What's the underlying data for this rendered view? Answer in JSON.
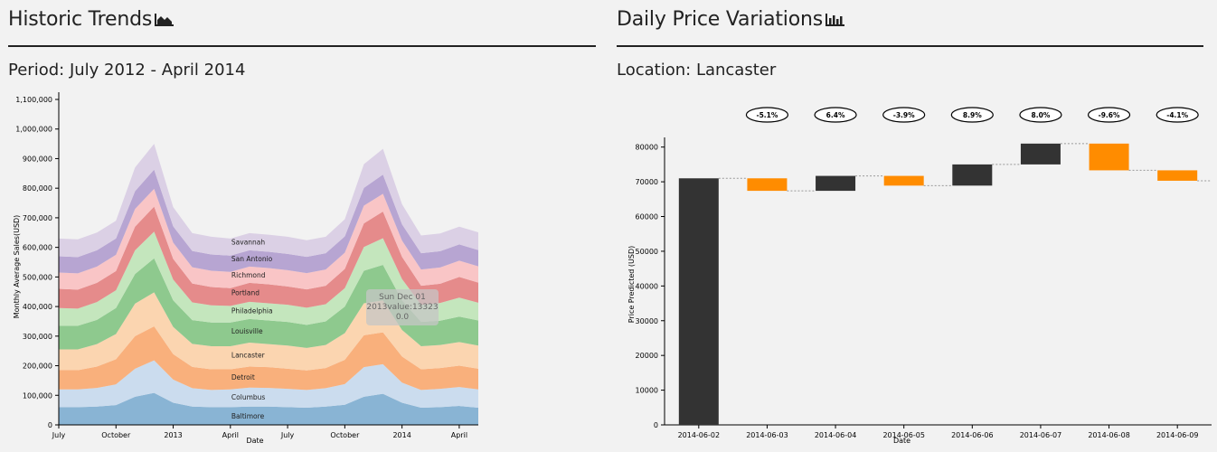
{
  "left": {
    "title": "Historic Trends",
    "title_icon": "area-chart-icon",
    "subtitle_label": "Period:",
    "subtitle_value": "July 2012 - April 2014"
  },
  "right": {
    "title": "Daily Price Variations",
    "title_icon": "bar-chart-icon",
    "subtitle_label": "Location:",
    "subtitle_value": "Lancaster"
  },
  "colors": {
    "stack": [
      "#89b4d4",
      "#cbdcee",
      "#f9b07c",
      "#fbd5b0",
      "#8ec98e",
      "#c4e6bd",
      "#e58b8b",
      "#f9c5c6",
      "#b7a5d2",
      "#dbd0e5"
    ],
    "increase": "#333333",
    "decrease": "#ff8c00",
    "tooltip_bg": "#c6c6c6",
    "tooltip_text": "#666666"
  },
  "chart_data": [
    {
      "type": "area",
      "stacked": true,
      "xlabel": "Date",
      "ylabel": "Monthly Average Sales(USD)",
      "ylim": [
        0,
        1100000
      ],
      "x_ticks": [
        "July",
        "October",
        "2013",
        "April",
        "July",
        "October",
        "2014",
        "April"
      ],
      "y_ticks": [
        "0",
        "100,000",
        "200,000",
        "300,000",
        "400,000",
        "500,000",
        "600,000",
        "700,000",
        "800,000",
        "900,000",
        "1,000,000",
        "1,100,000"
      ],
      "x": [
        "2012-07",
        "2012-08",
        "2012-09",
        "2012-10",
        "2012-11",
        "2012-12",
        "2013-01",
        "2013-02",
        "2013-03",
        "2013-04",
        "2013-05",
        "2013-06",
        "2013-07",
        "2013-08",
        "2013-09",
        "2013-10",
        "2013-11",
        "2013-12",
        "2014-01",
        "2014-02",
        "2014-03",
        "2014-04",
        "2014-05"
      ],
      "series": [
        {
          "name": "Baltimore",
          "values": [
            60000,
            60000,
            62000,
            67000,
            95000,
            108000,
            75000,
            62000,
            60000,
            60000,
            62000,
            62000,
            60000,
            58000,
            62000,
            68000,
            95000,
            105000,
            75000,
            58000,
            60000,
            64000,
            58000
          ]
        },
        {
          "name": "Columbus",
          "values": [
            60000,
            60000,
            63000,
            70000,
            95000,
            110000,
            78000,
            62000,
            58000,
            60000,
            64000,
            63000,
            62000,
            60000,
            62000,
            70000,
            100000,
            100000,
            68000,
            60000,
            62000,
            64000,
            62000
          ]
        },
        {
          "name": "Detroit",
          "values": [
            65000,
            65000,
            72000,
            85000,
            110000,
            115000,
            86000,
            72000,
            70000,
            68000,
            71000,
            70000,
            68000,
            66000,
            68000,
            82000,
            108000,
            108000,
            88000,
            70000,
            70000,
            72000,
            70000
          ]
        },
        {
          "name": "Lancaster",
          "values": [
            70000,
            70000,
            76000,
            85000,
            110000,
            115000,
            92000,
            78000,
            78000,
            78000,
            81000,
            78000,
            78000,
            76000,
            78000,
            90000,
            108000,
            108000,
            90000,
            78000,
            78000,
            80000,
            78000
          ]
        },
        {
          "name": "Louisville",
          "values": [
            80000,
            80000,
            82000,
            88000,
            100000,
            115000,
            90000,
            80000,
            80000,
            80000,
            80000,
            80000,
            80000,
            78000,
            80000,
            90000,
            110000,
            120000,
            100000,
            82000,
            82000,
            86000,
            85000
          ]
        },
        {
          "name": "Philadelphia",
          "values": [
            60000,
            58000,
            60000,
            60000,
            80000,
            90000,
            70000,
            60000,
            58000,
            56000,
            58000,
            58000,
            58000,
            58000,
            58000,
            62000,
            80000,
            90000,
            72000,
            58000,
            60000,
            64000,
            60000
          ]
        },
        {
          "name": "Portland",
          "values": [
            65000,
            64000,
            65000,
            65000,
            80000,
            85000,
            70000,
            64000,
            62000,
            60000,
            64000,
            64000,
            62000,
            62000,
            62000,
            65000,
            80000,
            90000,
            75000,
            64000,
            65000,
            70000,
            68000
          ]
        },
        {
          "name": "Richmond",
          "values": [
            55000,
            55000,
            55000,
            55000,
            60000,
            60000,
            55000,
            55000,
            55000,
            55000,
            55000,
            55000,
            55000,
            55000,
            55000,
            55000,
            60000,
            60000,
            55000,
            55000,
            55000,
            55000,
            55000
          ]
        },
        {
          "name": "San Antonio",
          "values": [
            55000,
            55000,
            55000,
            55000,
            60000,
            65000,
            55000,
            55000,
            55000,
            55000,
            55000,
            55000,
            55000,
            55000,
            55000,
            55000,
            60000,
            65000,
            55000,
            55000,
            55000,
            55000,
            55000
          ]
        },
        {
          "name": "Savannah",
          "values": [
            60000,
            60000,
            60000,
            60000,
            80000,
            87000,
            65000,
            60000,
            60000,
            58000,
            58000,
            58000,
            58000,
            56000,
            56000,
            58000,
            80000,
            87000,
            68000,
            60000,
            60000,
            60000,
            60000
          ]
        }
      ],
      "labels": [
        "Savannah",
        "San Antonio",
        "Richmond",
        "Portland",
        "Philadelphia",
        "Louisville",
        "Lancaster",
        "Detroit",
        "Columbus",
        "Baltimore"
      ],
      "tooltip": {
        "line1": "Sun Dec 01",
        "line2": "2013value:13323",
        "line3": "0.0"
      }
    },
    {
      "type": "bar",
      "subtype": "waterfall",
      "xlabel": "Date",
      "ylabel": "Price Predicted (USD)",
      "ylim": [
        0,
        82000
      ],
      "y_ticks": [
        "0",
        "10000",
        "20000",
        "30000",
        "40000",
        "50000",
        "60000",
        "70000",
        "80000"
      ],
      "categories": [
        "2014-06-02",
        "2014-06-03",
        "2014-06-04",
        "2014-06-05",
        "2014-06-06",
        "2014-06-07",
        "2014-06-08",
        "2014-06-09"
      ],
      "values": [
        71000,
        67400,
        71700,
        68900,
        75000,
        81000,
        73300,
        70300
      ],
      "pct_labels": [
        "-5.1%",
        "6.4%",
        "-3.9%",
        "8.9%",
        "8.0%",
        "-9.6%",
        "-4.1%"
      ]
    }
  ]
}
